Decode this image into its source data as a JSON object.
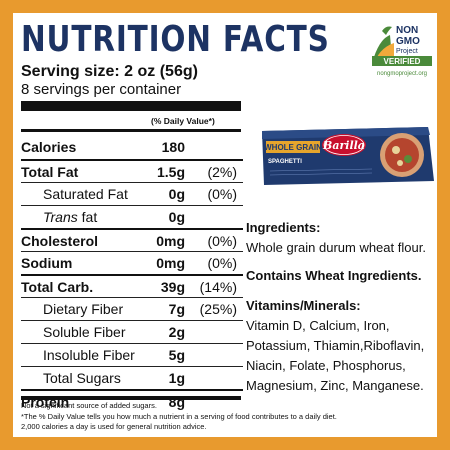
{
  "title": "NUTRITION FACTS",
  "serving_size": "Serving size: 2 oz (56g)",
  "servings_per_container": "8 servings per container",
  "dv_header": "(% Daily Value*)",
  "rows": [
    {
      "label": "Calories",
      "amount": "180",
      "pct": ""
    },
    {
      "label": "Total Fat",
      "amount": "1.5g",
      "pct": "(2%)"
    },
    {
      "label": "Saturated Fat",
      "amount": "0g",
      "pct": "(0%)"
    },
    {
      "label_italic": "Trans",
      "label": " fat",
      "amount": "0g",
      "pct": ""
    },
    {
      "label": "Cholesterol",
      "amount": "0mg",
      "pct": "(0%)"
    },
    {
      "label": "Sodium",
      "amount": "0mg",
      "pct": "(0%)"
    },
    {
      "label": "Total Carb.",
      "amount": "39g",
      "pct": "(14%)"
    },
    {
      "label": "Dietary Fiber",
      "amount": "7g",
      "pct": "(25%)"
    },
    {
      "label": "Soluble Fiber",
      "amount": "2g",
      "pct": ""
    },
    {
      "label": "Insoluble Fiber",
      "amount": "5g",
      "pct": ""
    },
    {
      "label": "Total Sugars",
      "amount": "1g",
      "pct": ""
    },
    {
      "label": "Protein",
      "amount": "8g",
      "pct": ""
    }
  ],
  "footnotes": [
    "Not a significant source of added sugars.",
    "*The % Daily Value tells you how much a nutrient in a serving of food contributes to a daily diet.",
    "2,000 calories a day is used for general nutrition advice."
  ],
  "ingredients_heading": "Ingredients:",
  "ingredients": "Whole grain durum wheat flour.",
  "allergen": "Contains Wheat Ingredients.",
  "vitamins_heading": "Vitamins/Minerals:",
  "vitamins_lines": [
    "Vitamin D, Calcium, Iron,",
    "Potassium, Thiamin,Riboflavin,",
    "Niacin, Folate, Phosphorus,",
    "Magnesium, Zinc, Manganese."
  ],
  "gmo": {
    "line1": "NON",
    "line2": "GMO",
    "line3": "Project",
    "verified": "VERIFIED",
    "url": "nongmoproject.org"
  },
  "product": {
    "brand": "Barilla",
    "badge": "WHOLE GRAIN",
    "variety": "SPAGHETTI"
  },
  "colors": {
    "border": "#e89a2e",
    "title": "#1d3363",
    "box_blue": "#1f3a6e",
    "badge_gold": "#e6a52c",
    "barilla_red": "#c8102e",
    "gmo_green": "#4a8a3a"
  }
}
